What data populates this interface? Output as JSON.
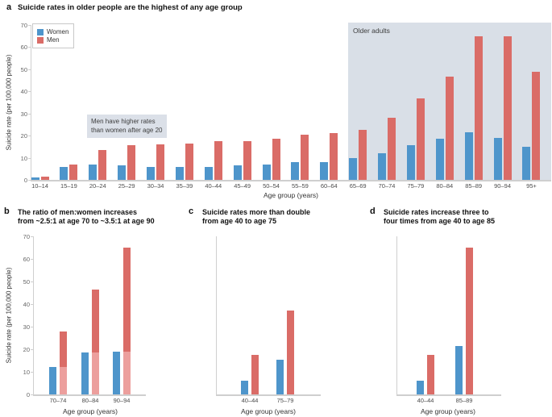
{
  "panels": {
    "a": {
      "letter": "a",
      "title": "Suicide rates in older people are the highest of any age group"
    },
    "b": {
      "letter": "b",
      "line1": "The ratio of men:women increases",
      "line2": "from ~2.5:1 at age 70 to ~3.5:1 at age 90"
    },
    "c": {
      "letter": "c",
      "line1": "Suicide rates more than double",
      "line2": "from age 40 to age 75"
    },
    "d": {
      "letter": "d",
      "line1": "Suicide rates increase three to",
      "line2": "four times from age 40 to age 85"
    }
  },
  "legend": {
    "women": "Women",
    "men": "Men"
  },
  "colors": {
    "women": "#4E95CB",
    "men": "#DA6C67",
    "men_light": "#EC9F9D",
    "region_bg": "#D9DFE7",
    "annotation_bg": "#DBE0E8",
    "axis": "#cfcfcf"
  },
  "chart_data": [
    {
      "id": "a",
      "type": "bar",
      "title": "Suicide rates in older people are the highest of any age group",
      "categories": [
        "10–14",
        "15–19",
        "20–24",
        "25–29",
        "30–34",
        "35–39",
        "40–44",
        "45–49",
        "50–54",
        "55–59",
        "60–64",
        "65–69",
        "70–74",
        "75–79",
        "80–84",
        "85–89",
        "90–94",
        "95+"
      ],
      "series": [
        {
          "name": "Women",
          "values": [
            1,
            6,
            7,
            6.5,
            6,
            6,
            6,
            6.5,
            7,
            8,
            8,
            10,
            12,
            15.5,
            18.5,
            21.5,
            19,
            15
          ]
        },
        {
          "name": "Men",
          "values": [
            1.5,
            7,
            13.5,
            15.5,
            16,
            16.5,
            17.5,
            17.5,
            18.5,
            20.5,
            21,
            22.5,
            28,
            37,
            46.5,
            65,
            65,
            49
          ]
        }
      ],
      "xlabel": "Age group (years)",
      "ylabel": "Suicide rate (per 100,000 people)",
      "ylim": [
        0,
        70
      ],
      "yticks": [
        0,
        10,
        20,
        30,
        40,
        50,
        60,
        70
      ],
      "legend_entries": [
        "Women",
        "Men"
      ],
      "shaded_region": {
        "label": "Older adults",
        "from_category": "65–69",
        "to_category": "95+"
      },
      "annotation": {
        "lines": [
          "Men have higher rates",
          "than women after age 20"
        ]
      }
    },
    {
      "id": "b",
      "type": "bar",
      "title": "The ratio of men:women increases from ~2.5:1 at age 70 to ~3.5:1 at age 90",
      "categories": [
        "70–74",
        "80–84",
        "90–94"
      ],
      "series": [
        {
          "name": "Women",
          "values": [
            12,
            18.5,
            19
          ]
        },
        {
          "name": "Men",
          "values": [
            28,
            46.5,
            65
          ]
        }
      ],
      "men_bar_overlay_women_value": true,
      "xlabel": "Age group (years)",
      "ylabel": "Suicide rate (per 100,000 people)",
      "ylim": [
        0,
        70
      ],
      "yticks": [
        0,
        10,
        20,
        30,
        40,
        50,
        60,
        70
      ]
    },
    {
      "id": "c",
      "type": "bar",
      "title": "Suicide rates more than double from age 40 to age 75",
      "categories": [
        "40–44",
        "75–79"
      ],
      "series": [
        {
          "name": "Women",
          "values": [
            6,
            15.5
          ]
        },
        {
          "name": "Men",
          "values": [
            17.5,
            37
          ]
        }
      ],
      "xlabel": "Age group (years)",
      "ylim": [
        0,
        70
      ],
      "yticks": []
    },
    {
      "id": "d",
      "type": "bar",
      "title": "Suicide rates increase three to four times from age 40 to age 85",
      "categories": [
        "40–44",
        "85–89"
      ],
      "series": [
        {
          "name": "Women",
          "values": [
            6,
            21.5
          ]
        },
        {
          "name": "Men",
          "values": [
            17.5,
            65
          ]
        }
      ],
      "xlabel": "Age group (years)",
      "ylim": [
        0,
        70
      ],
      "yticks": []
    }
  ]
}
